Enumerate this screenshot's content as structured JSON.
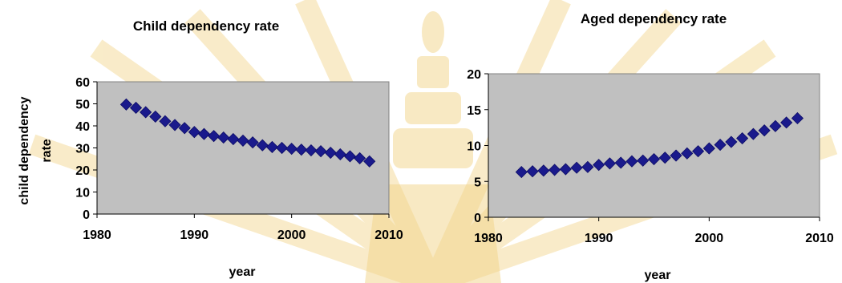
{
  "colors": {
    "plot_background": "#c0c0c0",
    "marker": "#1a1a8c",
    "watermark": "#f2d488"
  },
  "chart_data": [
    {
      "type": "scatter",
      "title": "Child dependency rate",
      "xlabel": "year",
      "ylabel": "child dependency rate",
      "ylabel_lines": [
        "child dependency",
        "rate"
      ],
      "xlim": [
        1980,
        2010
      ],
      "ylim": [
        0,
        60
      ],
      "xticks": [
        "1980",
        "1990",
        "2000",
        "2010"
      ],
      "yticks": [
        "0",
        "10",
        "20",
        "30",
        "40",
        "50",
        "60"
      ],
      "marker": "diamond",
      "grid": false,
      "legend": "none",
      "x": [
        1983,
        1984,
        1985,
        1986,
        1987,
        1988,
        1989,
        1990,
        1991,
        1992,
        1993,
        1994,
        1995,
        1996,
        1997,
        1998,
        1999,
        2000,
        2001,
        2002,
        2003,
        2004,
        2005,
        2006,
        2007,
        2008
      ],
      "y": [
        49.7,
        48.2,
        46.2,
        44.2,
        42.1,
        40.4,
        39.0,
        37.2,
        36.3,
        35.4,
        34.7,
        34.0,
        33.3,
        32.5,
        31.2,
        30.4,
        30.0,
        29.6,
        29.2,
        28.9,
        28.5,
        27.8,
        27.1,
        26.2,
        25.3,
        23.9
      ]
    },
    {
      "type": "scatter",
      "title": "Aged dependency rate",
      "xlabel": "year",
      "ylabel": "",
      "xlim": [
        1980,
        2010
      ],
      "ylim": [
        0,
        20
      ],
      "xticks": [
        "1980",
        "1990",
        "2000",
        "2010"
      ],
      "yticks": [
        "0",
        "5",
        "10",
        "15",
        "20"
      ],
      "marker": "diamond",
      "grid": false,
      "legend": "none",
      "x": [
        1983,
        1984,
        1985,
        1986,
        1987,
        1988,
        1989,
        1990,
        1991,
        1992,
        1993,
        1994,
        1995,
        1996,
        1997,
        1998,
        1999,
        2000,
        2001,
        2002,
        2003,
        2004,
        2005,
        2006,
        2007,
        2008
      ],
      "y": [
        6.3,
        6.4,
        6.5,
        6.6,
        6.7,
        6.9,
        7.0,
        7.3,
        7.5,
        7.6,
        7.8,
        7.9,
        8.1,
        8.3,
        8.6,
        8.9,
        9.2,
        9.6,
        10.1,
        10.5,
        11.0,
        11.6,
        12.1,
        12.7,
        13.2,
        13.8
      ]
    }
  ]
}
